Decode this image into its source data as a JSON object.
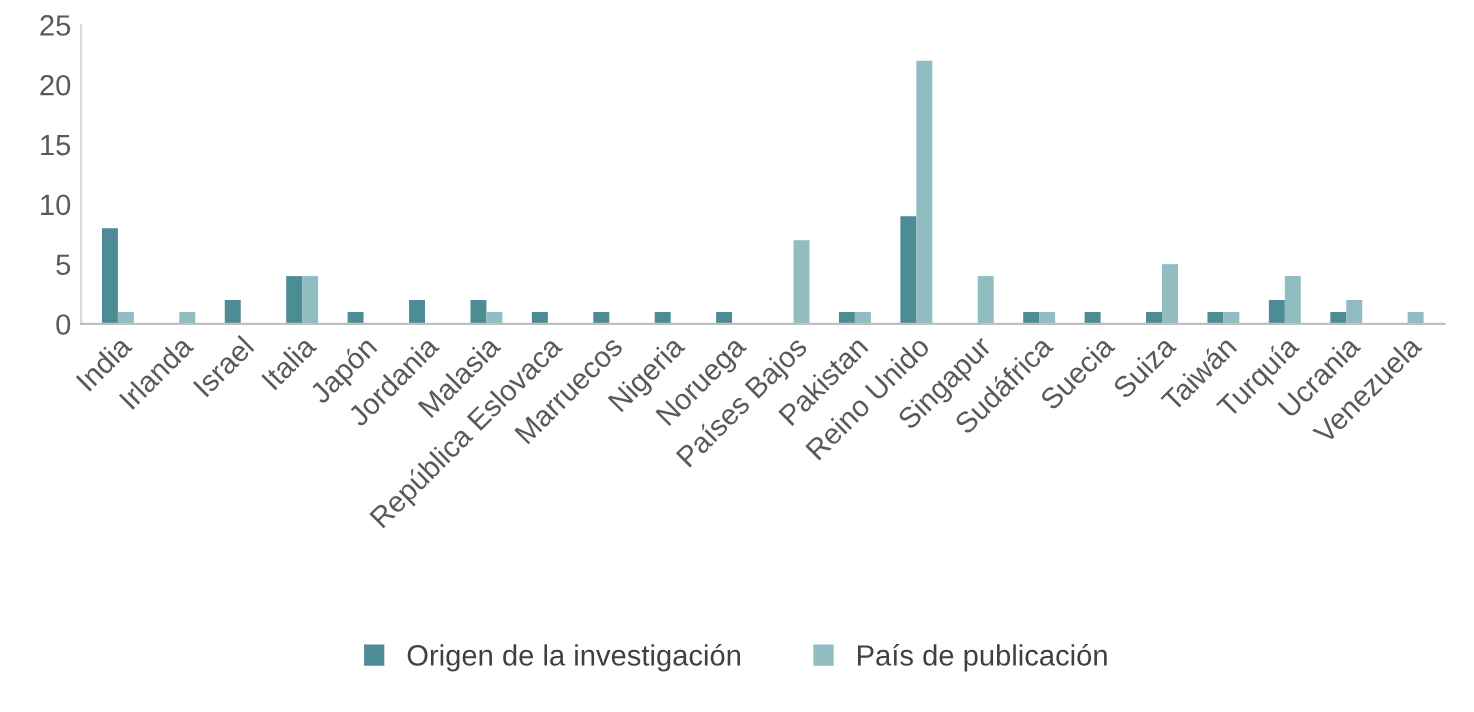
{
  "chart_data": {
    "type": "bar",
    "categories": [
      "India",
      "Irlanda",
      "Israel",
      "Italia",
      "Japón",
      "Jordania",
      "Malasia",
      "República Eslovaca",
      "Marruecos",
      "Nigeria",
      "Noruega",
      "Países Bajos",
      "Pakistan",
      "Reino Unido",
      "Singapur",
      "Sudáfrica",
      "Suecia",
      "Suiza",
      "Taiwán",
      "Turquía",
      "Ucrania",
      "Venezuela"
    ],
    "series": [
      {
        "name": "Origen de la investigación",
        "color": "#4e8c95",
        "values": [
          8,
          0,
          2,
          4,
          1,
          2,
          2,
          1,
          1,
          1,
          1,
          0,
          1,
          9,
          0,
          1,
          1,
          1,
          1,
          2,
          1,
          0
        ]
      },
      {
        "name": "País de publicación",
        "color": "#8fbdc1",
        "values": [
          1,
          1,
          0,
          4,
          0,
          0,
          1,
          0,
          0,
          0,
          0,
          7,
          1,
          22,
          4,
          1,
          0,
          5,
          1,
          4,
          2,
          1
        ]
      }
    ],
    "ylim": [
      0,
      25
    ],
    "yticks": [
      0,
      5,
      10,
      15,
      20,
      25
    ],
    "grid": false,
    "legend": "bottom"
  }
}
